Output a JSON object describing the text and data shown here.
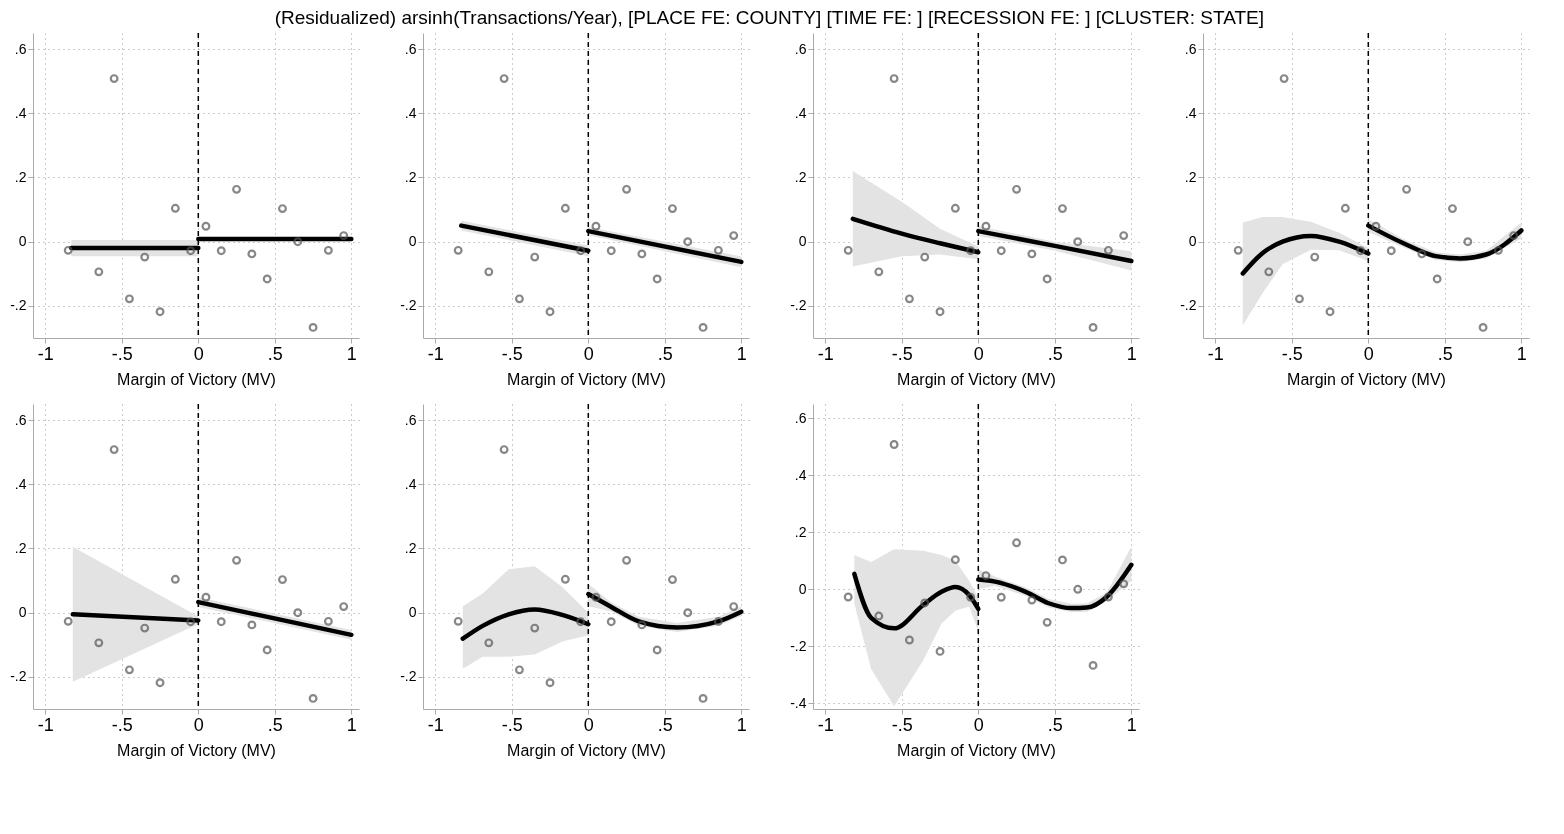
{
  "chart_data": [
    {
      "type": "scatter",
      "title": "(Residualized) arsinh(Transactions/Year), [PLACE FE: COUNTY] [TIME FE: ] [RECESSION FE: ] [CLUSTER: STATE]",
      "xlabel": "Margin of Victory (MV)",
      "xlim": [
        -1.08,
        1.05
      ],
      "ylim": [
        -0.3,
        0.65
      ],
      "xticks": [
        {
          "value": -1,
          "label": "-1"
        },
        {
          "value": -0.5,
          "label": "-.5"
        },
        {
          "value": 0,
          "label": "0"
        },
        {
          "value": 0.5,
          "label": ".5"
        },
        {
          "value": 1,
          "label": "1"
        }
      ],
      "yticks": [
        {
          "value": -0.2,
          "label": "-.2"
        },
        {
          "value": 0,
          "label": "0"
        },
        {
          "value": 0.2,
          "label": ".2"
        },
        {
          "value": 0.4,
          "label": ".4"
        },
        {
          "value": 0.6,
          "label": ".6"
        }
      ],
      "grid": true,
      "ref_lines": [
        {
          "axis": "x",
          "value": 0,
          "line_style": "dashed"
        }
      ],
      "series": [
        {
          "type": "scatter",
          "marker": "circle",
          "color": "#555555",
          "x": [
            -0.85,
            -0.65,
            -0.55,
            -0.45,
            -0.35,
            -0.25,
            -0.15,
            -0.05,
            0.05,
            0.15,
            0.25,
            0.35,
            0.45,
            0.55,
            0.65,
            0.75,
            0.85,
            0.95
          ],
          "values": [
            -0.027,
            -0.094,
            0.508,
            -0.178,
            -0.048,
            -0.218,
            0.104,
            -0.028,
            0.048,
            -0.028,
            0.163,
            -0.038,
            -0.116,
            0.103,
            0,
            -0.267,
            -0.027,
            0.019
          ]
        },
        {
          "type": "line",
          "color": "#000000",
          "x": [
            -0.83,
            0
          ],
          "values": [
            -0.02,
            -0.02
          ],
          "lower": [
            -0.045,
            -0.045
          ],
          "upper": [
            0.005,
            0.005
          ]
        },
        {
          "type": "line",
          "color": "#000000",
          "x": [
            0,
            1
          ],
          "values": [
            0.008,
            0.008
          ]
        }
      ]
    },
    {
      "type": "scatter",
      "xlabel": "Margin of Victory (MV)",
      "xlim": [
        -1.08,
        1.05
      ],
      "ylim": [
        -0.3,
        0.65
      ],
      "xticks": [
        {
          "value": -1,
          "label": "-1"
        },
        {
          "value": -0.5,
          "label": "-.5"
        },
        {
          "value": 0,
          "label": "0"
        },
        {
          "value": 0.5,
          "label": ".5"
        },
        {
          "value": 1,
          "label": "1"
        }
      ],
      "yticks": [
        {
          "value": -0.2,
          "label": "-.2"
        },
        {
          "value": 0,
          "label": "0"
        },
        {
          "value": 0.2,
          "label": ".2"
        },
        {
          "value": 0.4,
          "label": ".4"
        },
        {
          "value": 0.6,
          "label": ".6"
        }
      ],
      "grid": true,
      "ref_lines": [
        {
          "axis": "x",
          "value": 0,
          "line_style": "dashed"
        }
      ],
      "series": [
        {
          "type": "scatter",
          "marker": "circle",
          "color": "#555555",
          "x": [
            -0.85,
            -0.65,
            -0.55,
            -0.45,
            -0.35,
            -0.25,
            -0.15,
            -0.05,
            0.05,
            0.15,
            0.25,
            0.35,
            0.45,
            0.55,
            0.65,
            0.75,
            0.85,
            0.95
          ],
          "values": [
            -0.027,
            -0.094,
            0.508,
            -0.178,
            -0.048,
            -0.218,
            0.104,
            -0.028,
            0.048,
            -0.028,
            0.163,
            -0.038,
            -0.116,
            0.103,
            0,
            -0.267,
            -0.027,
            0.019
          ]
        },
        {
          "type": "line",
          "color": "#000000",
          "x": [
            -0.83,
            0
          ],
          "values": [
            0.05,
            -0.028
          ],
          "lower": [
            0.035,
            -0.045
          ],
          "upper": [
            0.065,
            -0.012
          ]
        },
        {
          "type": "line",
          "color": "#000000",
          "x": [
            0,
            1
          ],
          "values": [
            0.033,
            -0.063
          ],
          "lower": [
            0.02,
            -0.08
          ],
          "upper": [
            0.046,
            -0.046
          ]
        }
      ]
    },
    {
      "type": "scatter",
      "xlabel": "Margin of Victory (MV)",
      "xlim": [
        -1.08,
        1.05
      ],
      "ylim": [
        -0.3,
        0.65
      ],
      "xticks": [
        {
          "value": -1,
          "label": "-1"
        },
        {
          "value": -0.5,
          "label": "-.5"
        },
        {
          "value": 0,
          "label": "0"
        },
        {
          "value": 0.5,
          "label": ".5"
        },
        {
          "value": 1,
          "label": "1"
        }
      ],
      "yticks": [
        {
          "value": -0.2,
          "label": "-.2"
        },
        {
          "value": 0,
          "label": "0"
        },
        {
          "value": 0.2,
          "label": ".2"
        },
        {
          "value": 0.4,
          "label": ".4"
        },
        {
          "value": 0.6,
          "label": ".6"
        }
      ],
      "grid": true,
      "ref_lines": [
        {
          "axis": "x",
          "value": 0,
          "line_style": "dashed"
        }
      ],
      "series": [
        {
          "type": "scatter",
          "marker": "circle",
          "color": "#555555",
          "x": [
            -0.85,
            -0.65,
            -0.55,
            -0.45,
            -0.35,
            -0.25,
            -0.15,
            -0.05,
            0.05,
            0.15,
            0.25,
            0.35,
            0.45,
            0.55,
            0.65,
            0.75,
            0.85,
            0.95
          ],
          "values": [
            -0.027,
            -0.094,
            0.508,
            -0.178,
            -0.048,
            -0.218,
            0.104,
            -0.028,
            0.048,
            -0.028,
            0.163,
            -0.038,
            -0.116,
            0.103,
            0,
            -0.267,
            -0.027,
            0.019
          ]
        },
        {
          "type": "line",
          "color": "#000000",
          "x": [
            -0.82,
            -0.5,
            -0.25,
            0
          ],
          "values": [
            0.071,
            0.025,
            -0.005,
            -0.033
          ],
          "lower": [
            -0.077,
            -0.045,
            -0.04,
            -0.055
          ],
          "upper": [
            0.22,
            0.124,
            0.04,
            -0.015
          ]
        },
        {
          "type": "line",
          "color": "#000000",
          "x": [
            0,
            0.5,
            1
          ],
          "values": [
            0.033,
            -0.013,
            -0.06
          ],
          "lower": [
            0.018,
            -0.028,
            -0.09
          ],
          "upper": [
            0.048,
            0,
            -0.03
          ]
        }
      ]
    },
    {
      "type": "scatter",
      "xlabel": "Margin of Victory (MV)",
      "xlim": [
        -1.08,
        1.05
      ],
      "ylim": [
        -0.3,
        0.65
      ],
      "xticks": [
        {
          "value": -1,
          "label": "-1"
        },
        {
          "value": -0.5,
          "label": "-.5"
        },
        {
          "value": 0,
          "label": "0"
        },
        {
          "value": 0.5,
          "label": ".5"
        },
        {
          "value": 1,
          "label": "1"
        }
      ],
      "yticks": [
        {
          "value": -0.2,
          "label": "-.2"
        },
        {
          "value": 0,
          "label": "0"
        },
        {
          "value": 0.2,
          "label": ".2"
        },
        {
          "value": 0.4,
          "label": ".4"
        },
        {
          "value": 0.6,
          "label": ".6"
        }
      ],
      "grid": true,
      "ref_lines": [
        {
          "axis": "x",
          "value": 0,
          "line_style": "dashed"
        }
      ],
      "series": [
        {
          "type": "scatter",
          "marker": "circle",
          "color": "#555555",
          "x": [
            -0.85,
            -0.65,
            -0.55,
            -0.45,
            -0.35,
            -0.25,
            -0.15,
            -0.05,
            0.05,
            0.15,
            0.25,
            0.35,
            0.45,
            0.55,
            0.65,
            0.75,
            0.85,
            0.95
          ],
          "values": [
            -0.027,
            -0.094,
            0.508,
            -0.178,
            -0.048,
            -0.218,
            0.104,
            -0.028,
            0.048,
            -0.028,
            0.163,
            -0.038,
            -0.116,
            0.103,
            0,
            -0.267,
            -0.027,
            0.019
          ]
        },
        {
          "type": "line",
          "color": "#000000",
          "x": [
            -0.82,
            -0.69,
            -0.56,
            -0.375,
            -0.19,
            0
          ],
          "values": [
            -0.099,
            -0.035,
            0,
            0.018,
            0,
            -0.037
          ],
          "lower": [
            -0.26,
            -0.16,
            -0.07,
            -0.025,
            -0.027,
            -0.06
          ],
          "upper": [
            0.06,
            0.077,
            0.077,
            0.062,
            0.028,
            -0.02
          ]
        },
        {
          "type": "line",
          "color": "#000000",
          "x": [
            0,
            0.23,
            0.44,
            0.6,
            0.77,
            1
          ],
          "values": [
            0.05,
            -0.005,
            -0.045,
            -0.052,
            -0.04,
            0.035
          ],
          "lower": [
            0.03,
            -0.018,
            -0.057,
            -0.064,
            -0.052,
            0.01
          ],
          "upper": [
            0.07,
            0.008,
            -0.033,
            -0.04,
            -0.028,
            0.06
          ]
        }
      ]
    },
    {
      "type": "scatter",
      "xlabel": "Margin of Victory (MV)",
      "xlim": [
        -1.08,
        1.05
      ],
      "ylim": [
        -0.3,
        0.65
      ],
      "xticks": [
        {
          "value": -1,
          "label": "-1"
        },
        {
          "value": -0.5,
          "label": "-.5"
        },
        {
          "value": 0,
          "label": "0"
        },
        {
          "value": 0.5,
          "label": ".5"
        },
        {
          "value": 1,
          "label": "1"
        }
      ],
      "yticks": [
        {
          "value": -0.2,
          "label": "-.2"
        },
        {
          "value": 0,
          "label": "0"
        },
        {
          "value": 0.2,
          "label": ".2"
        },
        {
          "value": 0.4,
          "label": ".4"
        },
        {
          "value": 0.6,
          "label": ".6"
        }
      ],
      "grid": true,
      "ref_lines": [
        {
          "axis": "x",
          "value": 0,
          "line_style": "dashed"
        }
      ],
      "series": [
        {
          "type": "scatter",
          "marker": "circle",
          "color": "#555555",
          "x": [
            -0.85,
            -0.65,
            -0.55,
            -0.45,
            -0.35,
            -0.25,
            -0.15,
            -0.05,
            0.05,
            0.15,
            0.25,
            0.35,
            0.45,
            0.55,
            0.65,
            0.75,
            0.85,
            0.95
          ],
          "values": [
            -0.027,
            -0.094,
            0.508,
            -0.178,
            -0.048,
            -0.218,
            0.104,
            -0.028,
            0.048,
            -0.028,
            0.163,
            -0.038,
            -0.116,
            0.103,
            0,
            -0.267,
            -0.027,
            0.019
          ]
        },
        {
          "type": "line",
          "color": "#000000",
          "x": [
            -0.82,
            0
          ],
          "values": [
            -0.005,
            -0.024
          ],
          "lower": [
            -0.215,
            -0.035
          ],
          "upper": [
            0.205,
            -0.012
          ]
        },
        {
          "type": "line",
          "color": "#000000",
          "x": [
            0,
            1
          ],
          "values": [
            0.033,
            -0.069
          ],
          "lower": [
            0.018,
            -0.084
          ],
          "upper": [
            0.048,
            -0.054
          ]
        }
      ]
    },
    {
      "type": "scatter",
      "xlabel": "Margin of Victory (MV)",
      "xlim": [
        -1.08,
        1.05
      ],
      "ylim": [
        -0.3,
        0.65
      ],
      "xticks": [
        {
          "value": -1,
          "label": "-1"
        },
        {
          "value": -0.5,
          "label": "-.5"
        },
        {
          "value": 0,
          "label": "0"
        },
        {
          "value": 0.5,
          "label": ".5"
        },
        {
          "value": 1,
          "label": "1"
        }
      ],
      "yticks": [
        {
          "value": -0.2,
          "label": "-.2"
        },
        {
          "value": 0,
          "label": "0"
        },
        {
          "value": 0.2,
          "label": ".2"
        },
        {
          "value": 0.4,
          "label": ".4"
        },
        {
          "value": 0.6,
          "label": ".6"
        }
      ],
      "grid": true,
      "ref_lines": [
        {
          "axis": "x",
          "value": 0,
          "line_style": "dashed"
        }
      ],
      "series": [
        {
          "type": "scatter",
          "marker": "circle",
          "color": "#555555",
          "x": [
            -0.85,
            -0.65,
            -0.55,
            -0.45,
            -0.35,
            -0.25,
            -0.15,
            -0.05,
            0.05,
            0.15,
            0.25,
            0.35,
            0.45,
            0.55,
            0.65,
            0.75,
            0.85,
            0.95
          ],
          "values": [
            -0.027,
            -0.094,
            0.508,
            -0.178,
            -0.048,
            -0.218,
            0.104,
            -0.028,
            0.048,
            -0.028,
            0.163,
            -0.038,
            -0.116,
            0.103,
            0,
            -0.267,
            -0.027,
            0.019
          ]
        },
        {
          "type": "line",
          "color": "#000000",
          "x": [
            -0.82,
            -0.69,
            -0.52,
            -0.35,
            -0.17,
            0
          ],
          "values": [
            -0.081,
            -0.041,
            -0.005,
            0.01,
            -0.007,
            -0.036
          ],
          "lower": [
            -0.175,
            -0.137,
            -0.137,
            -0.13,
            -0.09,
            -0.07
          ],
          "upper": [
            0.02,
            0.06,
            0.135,
            0.145,
            0.08,
            0
          ]
        },
        {
          "type": "line",
          "color": "#000000",
          "x": [
            0,
            0.15,
            0.33,
            0.58,
            0.85,
            1
          ],
          "values": [
            0.058,
            0.018,
            -0.027,
            -0.046,
            -0.027,
            0.003
          ],
          "lower": [
            0.02,
            0.004,
            -0.041,
            -0.06,
            -0.041,
            -0.01
          ],
          "upper": [
            0.09,
            0.032,
            -0.013,
            -0.032,
            -0.013,
            0.02
          ]
        }
      ]
    },
    {
      "type": "scatter",
      "xlabel": "Margin of Victory (MV)",
      "xlim": [
        -1.08,
        1.05
      ],
      "ylim": [
        -0.42,
        0.65
      ],
      "xticks": [
        {
          "value": -1,
          "label": "-1"
        },
        {
          "value": -0.5,
          "label": "-.5"
        },
        {
          "value": 0,
          "label": "0"
        },
        {
          "value": 0.5,
          "label": ".5"
        },
        {
          "value": 1,
          "label": "1"
        }
      ],
      "yticks": [
        {
          "value": -0.4,
          "label": "-.4"
        },
        {
          "value": -0.2,
          "label": "-.2"
        },
        {
          "value": 0,
          "label": "0"
        },
        {
          "value": 0.2,
          "label": ".2"
        },
        {
          "value": 0.4,
          "label": ".4"
        },
        {
          "value": 0.6,
          "label": ".6"
        }
      ],
      "grid": true,
      "ref_lines": [
        {
          "axis": "x",
          "value": 0,
          "line_style": "dashed"
        }
      ],
      "series": [
        {
          "type": "scatter",
          "marker": "circle",
          "color": "#555555",
          "x": [
            -0.85,
            -0.65,
            -0.55,
            -0.45,
            -0.35,
            -0.25,
            -0.15,
            -0.05,
            0.05,
            0.15,
            0.25,
            0.35,
            0.45,
            0.55,
            0.65,
            0.75,
            0.85,
            0.95
          ],
          "values": [
            -0.027,
            -0.094,
            0.508,
            -0.178,
            -0.048,
            -0.218,
            0.104,
            -0.028,
            0.048,
            -0.028,
            0.163,
            -0.038,
            -0.116,
            0.103,
            0,
            -0.267,
            -0.027,
            0.019
          ]
        },
        {
          "type": "line",
          "color": "#000000",
          "x": [
            -0.81,
            -0.7,
            -0.55,
            -0.36,
            -0.24,
            -0.15,
            -0.06,
            0
          ],
          "values": [
            0.054,
            -0.1,
            -0.137,
            -0.055,
            -0.009,
            0.008,
            -0.02,
            -0.069
          ],
          "lower": [
            -0.05,
            -0.28,
            -0.41,
            -0.25,
            -0.12,
            -0.075,
            -0.06,
            -0.146
          ],
          "upper": [
            0.12,
            0.096,
            0.14,
            0.135,
            0.12,
            0.1,
            0.03,
            -0.03
          ]
        },
        {
          "type": "line",
          "color": "#000000",
          "x": [
            0,
            0.11,
            0.31,
            0.46,
            0.61,
            0.71,
            0.84,
            1
          ],
          "values": [
            0.034,
            0.027,
            -0.009,
            -0.049,
            -0.066,
            -0.064,
            -0.026,
            0.086
          ],
          "lower": [
            0,
            0.012,
            -0.024,
            -0.064,
            -0.081,
            -0.079,
            -0.041,
            0.03
          ],
          "upper": [
            0.07,
            0.045,
            0.006,
            -0.034,
            -0.051,
            -0.049,
            -0.011,
            0.15
          ]
        }
      ]
    }
  ]
}
